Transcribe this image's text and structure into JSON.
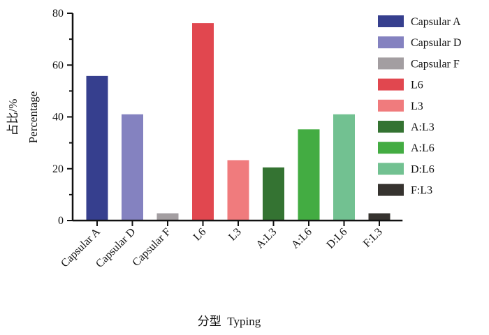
{
  "chart_data": {
    "type": "bar",
    "xlabel": "分型  Typing",
    "ylabel_line1": "占比/%",
    "ylabel_line2": "Percentage",
    "ylim": [
      0,
      80
    ],
    "yticks": [
      0,
      20,
      40,
      60,
      80
    ],
    "grid": false,
    "legend_position": "right",
    "categories": [
      "Capsular A",
      "Capsular D",
      "Capsular F",
      "L6",
      "L3",
      "A:L3",
      "A:L6",
      "D:L6",
      "F:L3"
    ],
    "values": [
      55.8,
      41.0,
      2.8,
      76.2,
      23.3,
      20.5,
      35.2,
      41.0,
      2.8
    ],
    "colors": [
      "#363f8e",
      "#8482c0",
      "#a39ea1",
      "#e1474f",
      "#f07b7d",
      "#347332",
      "#43ac42",
      "#72c191",
      "#36332f"
    ]
  }
}
